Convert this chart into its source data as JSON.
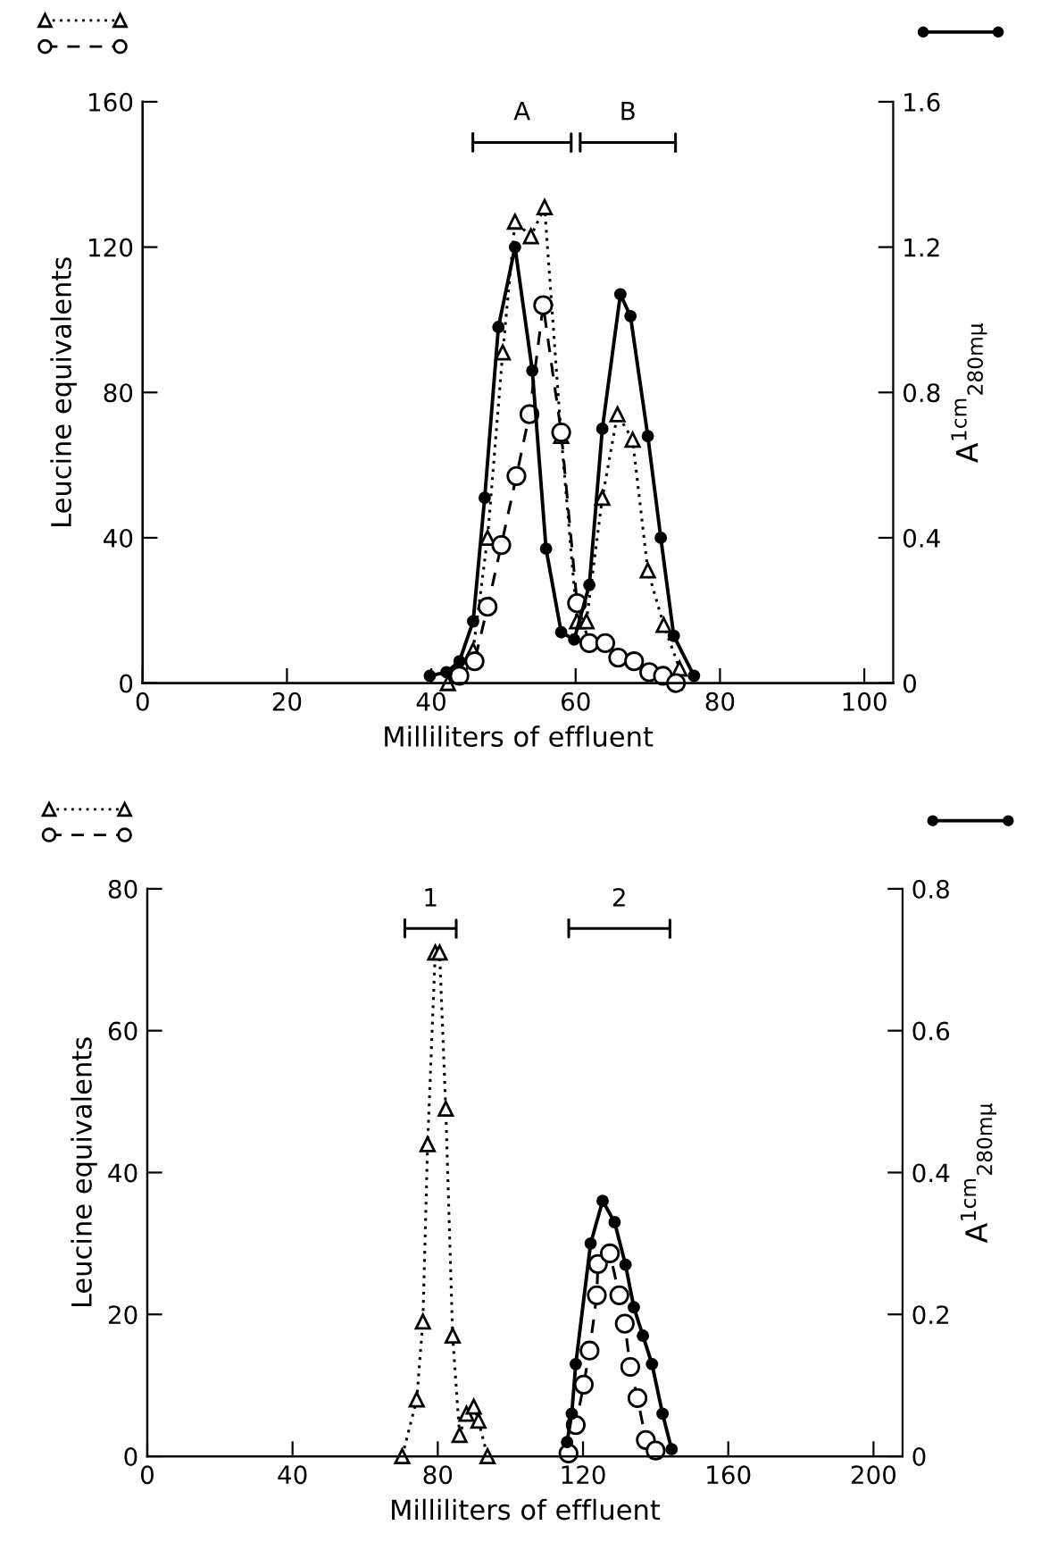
{
  "chart_data": [
    {
      "type": "line",
      "xlabel": "Milliliters of effluent",
      "ylabel": "Leucine equivalents",
      "y2label": "A$^{1cm}$$_{280mμ}$",
      "xlim": [
        0,
        104
      ],
      "xticks": [
        0,
        20,
        40,
        60,
        80,
        100
      ],
      "ylim": [
        0,
        160
      ],
      "yticks": [
        0,
        40,
        80,
        120,
        160
      ],
      "y2lim": [
        0,
        1.6
      ],
      "y2ticks": [
        0,
        0.4,
        0.8,
        1.2,
        1.6
      ],
      "grid": false,
      "legend": false,
      "annotations": [
        "A",
        "B"
      ],
      "series": [
        {
          "color": "#000000",
          "marker": "triangle",
          "line_style": "dotted",
          "x": [
            42.3,
            45.8,
            47.8,
            49.9,
            51.6,
            53.8,
            55.7,
            58.0,
            60.2,
            61.5,
            63.7,
            65.8,
            67.9,
            70.0,
            72.2,
            74.4
          ],
          "values": [
            0,
            9,
            40,
            91,
            127,
            123,
            131,
            68,
            17,
            17,
            51,
            74,
            67,
            31,
            16,
            4
          ]
        },
        {
          "color": "#000000",
          "marker": "circle",
          "line_style": "dashed",
          "x": [
            43.9,
            46.0,
            47.8,
            49.7,
            51.8,
            53.6,
            55.5,
            58.0,
            60.2,
            61.9,
            64.1,
            65.9,
            68.1,
            70.2,
            72.1,
            73.9
          ],
          "values": [
            2,
            6,
            21,
            38,
            57,
            74,
            104,
            69,
            22,
            11,
            11,
            7,
            6,
            3,
            2,
            0
          ]
        },
        {
          "color": "#000000",
          "marker": "circle",
          "line_style": "solid",
          "axis": "y2",
          "x": [
            39.8,
            42.1,
            43.9,
            45.8,
            47.4,
            49.3,
            51.6,
            54.0,
            55.9,
            58.0,
            59.8,
            61.9,
            63.7,
            66.2,
            67.6,
            70.0,
            71.8,
            73.6,
            76.4
          ],
          "values": [
            0.02,
            0.03,
            0.06,
            0.17,
            0.51,
            0.98,
            1.2,
            0.86,
            0.37,
            0.14,
            0.12,
            0.27,
            0.7,
            1.07,
            1.01,
            0.68,
            0.4,
            0.13,
            0.02
          ]
        }
      ]
    },
    {
      "type": "line",
      "xlabel": "Milliliters of effluent",
      "ylabel": "Leucine equivalents",
      "y2label": "A$^{1cm}$$_{280mμ}$",
      "xlim": [
        0,
        208
      ],
      "xticks": [
        0,
        40,
        80,
        120,
        160,
        200
      ],
      "ylim": [
        0,
        80
      ],
      "yticks": [
        0,
        20,
        40,
        60,
        80
      ],
      "y2lim": [
        0,
        0.8
      ],
      "y2ticks": [
        0,
        0.2,
        0.4,
        0.6,
        0.8
      ],
      "grid": false,
      "legend": false,
      "annotations": [
        "1",
        "2"
      ],
      "series": [
        {
          "color": "#000000",
          "marker": "triangle",
          "line_style": "dotted",
          "x": [
            70.2,
            74.2,
            75.9,
            77.2,
            79.3,
            80.5,
            82.2,
            84.1,
            86.0,
            87.9,
            89.9,
            91.2,
            93.7
          ],
          "values": [
            0,
            8,
            19,
            44,
            71,
            71,
            49,
            17,
            3,
            6,
            7,
            5,
            0
          ]
        },
        {
          "color": "#000000",
          "marker": "circle",
          "line_style": "dashed",
          "x": [
            116.0,
            118.0,
            120.2,
            121.8,
            123.8,
            124.1,
            127.4,
            130.0,
            131.5,
            133.0,
            135.0,
            137.3,
            140.0
          ],
          "values": [
            0.4,
            4.4,
            10.1,
            14.9,
            22.7,
            27.1,
            28.6,
            22.7,
            18.7,
            12.6,
            8.2,
            2.3,
            0.8
          ]
        },
        {
          "color": "#000000",
          "marker": "circle",
          "line_style": "solid",
          "axis": "y2",
          "x": [
            115.6,
            116.9,
            118.0,
            122.1,
            125.4,
            128.7,
            131.7,
            134.0,
            136.5,
            139.0,
            141.9,
            144.4
          ],
          "values": [
            0.02,
            0.06,
            0.13,
            0.3,
            0.36,
            0.33,
            0.27,
            0.21,
            0.17,
            0.13,
            0.06,
            0.01
          ]
        }
      ]
    }
  ]
}
